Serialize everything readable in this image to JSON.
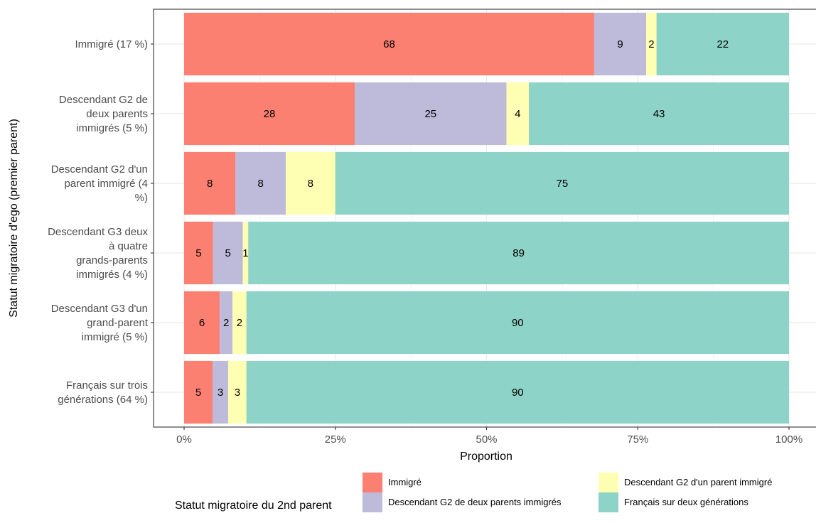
{
  "chart_data": {
    "type": "bar",
    "orientation": "horizontal",
    "stacked": true,
    "categories": [
      [
        "Immigré (17 %)"
      ],
      [
        "Descendant G2 de",
        "deux parents",
        "immigrés (5 %)"
      ],
      [
        "Descendant G2 d'un",
        "parent immigré (4",
        "%)"
      ],
      [
        "Descendant G3 deux",
        "à quatre",
        "grands-parents",
        "immigrés (4 %)"
      ],
      [
        "Descendant G3 d'un",
        "grand-parent",
        "immigré (5 %)"
      ],
      [
        "Français sur trois",
        "générations (64 %)"
      ]
    ],
    "series": [
      {
        "name": "Immigré",
        "color": "#fb8072",
        "values": [
          0.678,
          0.282,
          0.085,
          0.048,
          0.059,
          0.047
        ],
        "labels": [
          "68",
          "28",
          "8",
          "5",
          "6",
          "5"
        ]
      },
      {
        "name": "Descendant G2 de deux parents immigrés",
        "color": "#bebada",
        "values": [
          0.086,
          0.251,
          0.083,
          0.049,
          0.021,
          0.026
        ],
        "labels": [
          "9",
          "25",
          "8",
          "5",
          "2",
          "3"
        ]
      },
      {
        "name": "Descendant G2 d'un parent immigré",
        "color": "#ffffb3",
        "values": [
          0.017,
          0.037,
          0.082,
          0.009,
          0.023,
          0.03
        ],
        "labels": [
          "2",
          "4",
          "8",
          "1",
          "2",
          "3"
        ]
      },
      {
        "name": "Français sur deux générations",
        "color": "#8dd3c7",
        "values": [
          0.219,
          0.43,
          0.75,
          0.894,
          0.897,
          0.897
        ],
        "labels": [
          "22",
          "43",
          "75",
          "89",
          "90",
          "90"
        ]
      }
    ],
    "xlabel": "Proportion",
    "ylabel": "Statut migratoire d'ego (premier parent)",
    "xlim": [
      0,
      1
    ],
    "xticks": [
      0,
      0.25,
      0.5,
      0.75,
      1
    ],
    "xtick_labels": [
      "0%",
      "25%",
      "50%",
      "75%",
      "100%"
    ],
    "grid": true,
    "legend": {
      "title": "Statut migratoire du 2nd parent",
      "position": "bottom"
    }
  }
}
